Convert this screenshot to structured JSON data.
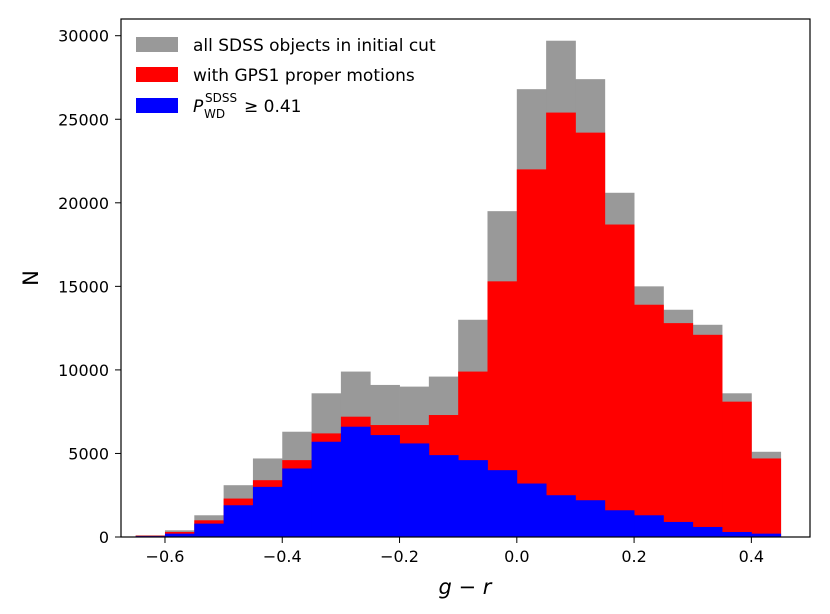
{
  "chart_data": {
    "type": "bar",
    "xlabel": "g − r",
    "ylabel": "N",
    "xlim": [
      -0.675,
      0.5
    ],
    "ylim": [
      0,
      31000
    ],
    "xticks": [
      "−0.6",
      "−0.4",
      "−0.2",
      "0.0",
      "0.2",
      "0.4"
    ],
    "xtick_values": [
      -0.6,
      -0.4,
      -0.2,
      0.0,
      0.2,
      0.4
    ],
    "yticks": [
      "0",
      "5000",
      "10000",
      "15000",
      "20000",
      "25000",
      "30000"
    ],
    "ytick_values": [
      0,
      5000,
      10000,
      15000,
      20000,
      25000,
      30000
    ],
    "bin_edges": [
      -0.65,
      -0.6,
      -0.55,
      -0.5,
      -0.45,
      -0.4,
      -0.35,
      -0.3,
      -0.25,
      -0.2,
      -0.15,
      -0.1,
      -0.05,
      0.0,
      0.05,
      0.1,
      0.15,
      0.2,
      0.25,
      0.3,
      0.35,
      0.4,
      0.45
    ],
    "legend_position": "upper-left",
    "series": [
      {
        "name": "all SDSS objects in initial cut",
        "color": "#999999",
        "values": [
          100,
          400,
          1300,
          3100,
          4700,
          6300,
          8600,
          9900,
          9100,
          9000,
          9600,
          13000,
          19500,
          26800,
          29700,
          27400,
          20600,
          15000,
          13600,
          12700,
          8600,
          5100
        ]
      },
      {
        "name": "with GPS1 proper motions",
        "color": "#ff0000",
        "values": [
          80,
          300,
          1000,
          2300,
          3400,
          4600,
          6200,
          7200,
          6700,
          6700,
          7300,
          9900,
          15300,
          22000,
          25400,
          24200,
          18700,
          13900,
          12800,
          12100,
          8100,
          4700
        ]
      },
      {
        "name_prefix": "P",
        "name_superscript": "SDSS",
        "name_subscript": "WD",
        "name_suffix": "≥ 0.41",
        "color": "#0000ff",
        "values": [
          50,
          200,
          800,
          1900,
          3000,
          4100,
          5700,
          6600,
          6100,
          5600,
          4900,
          4600,
          4000,
          3200,
          2500,
          2200,
          1600,
          1300,
          900,
          600,
          300,
          200
        ]
      }
    ]
  }
}
